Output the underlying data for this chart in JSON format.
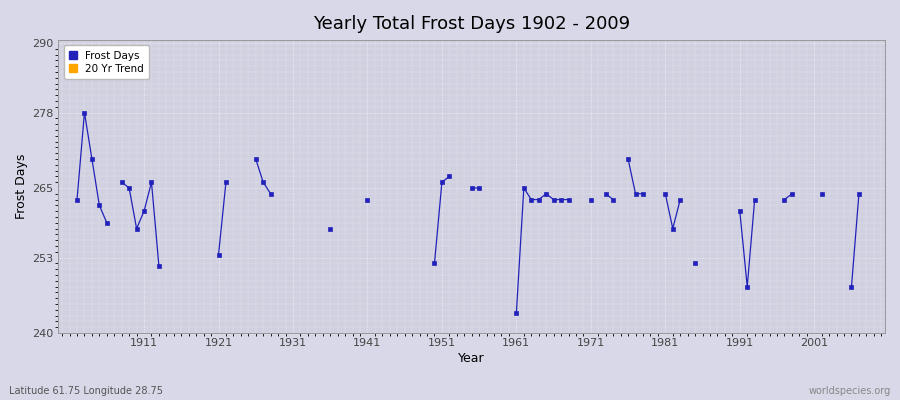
{
  "title": "Yearly Total Frost Days 1902 - 2009",
  "xlabel": "Year",
  "ylabel": "Frost Days",
  "subtitle": "Latitude 61.75 Longitude 28.75",
  "watermark": "worldspecies.org",
  "ylim": [
    240,
    290
  ],
  "xlim": [
    1899.5,
    2010.5
  ],
  "yticks": [
    240,
    253,
    265,
    278,
    290
  ],
  "xticks": [
    1911,
    1921,
    1931,
    1941,
    1951,
    1961,
    1971,
    1981,
    1991,
    2001
  ],
  "line_color": "#2222bb",
  "trend_color": "#FFA500",
  "bg_outer": "#d8d8e8",
  "bg_inner": "#d0d0e0",
  "grid_color": "#ffffff",
  "year_vals": {
    "1902": 263,
    "1903": 278,
    "1904": 270,
    "1905": 262,
    "1906": 259,
    "1908": 266,
    "1909": 265,
    "1910": 258,
    "1911": 261,
    "1912": 266,
    "1913": 251.5,
    "1921": 253.5,
    "1922": 266,
    "1926": 270,
    "1927": 266,
    "1928": 264,
    "1936": 258,
    "1941": 263,
    "1950": 252,
    "1951": 266,
    "1952": 267,
    "1955": 265,
    "1956": 265,
    "1961": 243.5,
    "1962": 265,
    "1963": 263,
    "1964": 263,
    "1965": 264,
    "1966": 263,
    "1967": 263,
    "1968": 263,
    "1971": 263,
    "1973": 264,
    "1974": 263,
    "1976": 270,
    "1977": 264,
    "1978": 264,
    "1981": 264,
    "1982": 258,
    "1983": 263,
    "1985": 252,
    "1991": 261,
    "1992": 248,
    "1993": 263,
    "1997": 263,
    "1998": 264,
    "2002": 264,
    "2006": 248,
    "2007": 264
  }
}
